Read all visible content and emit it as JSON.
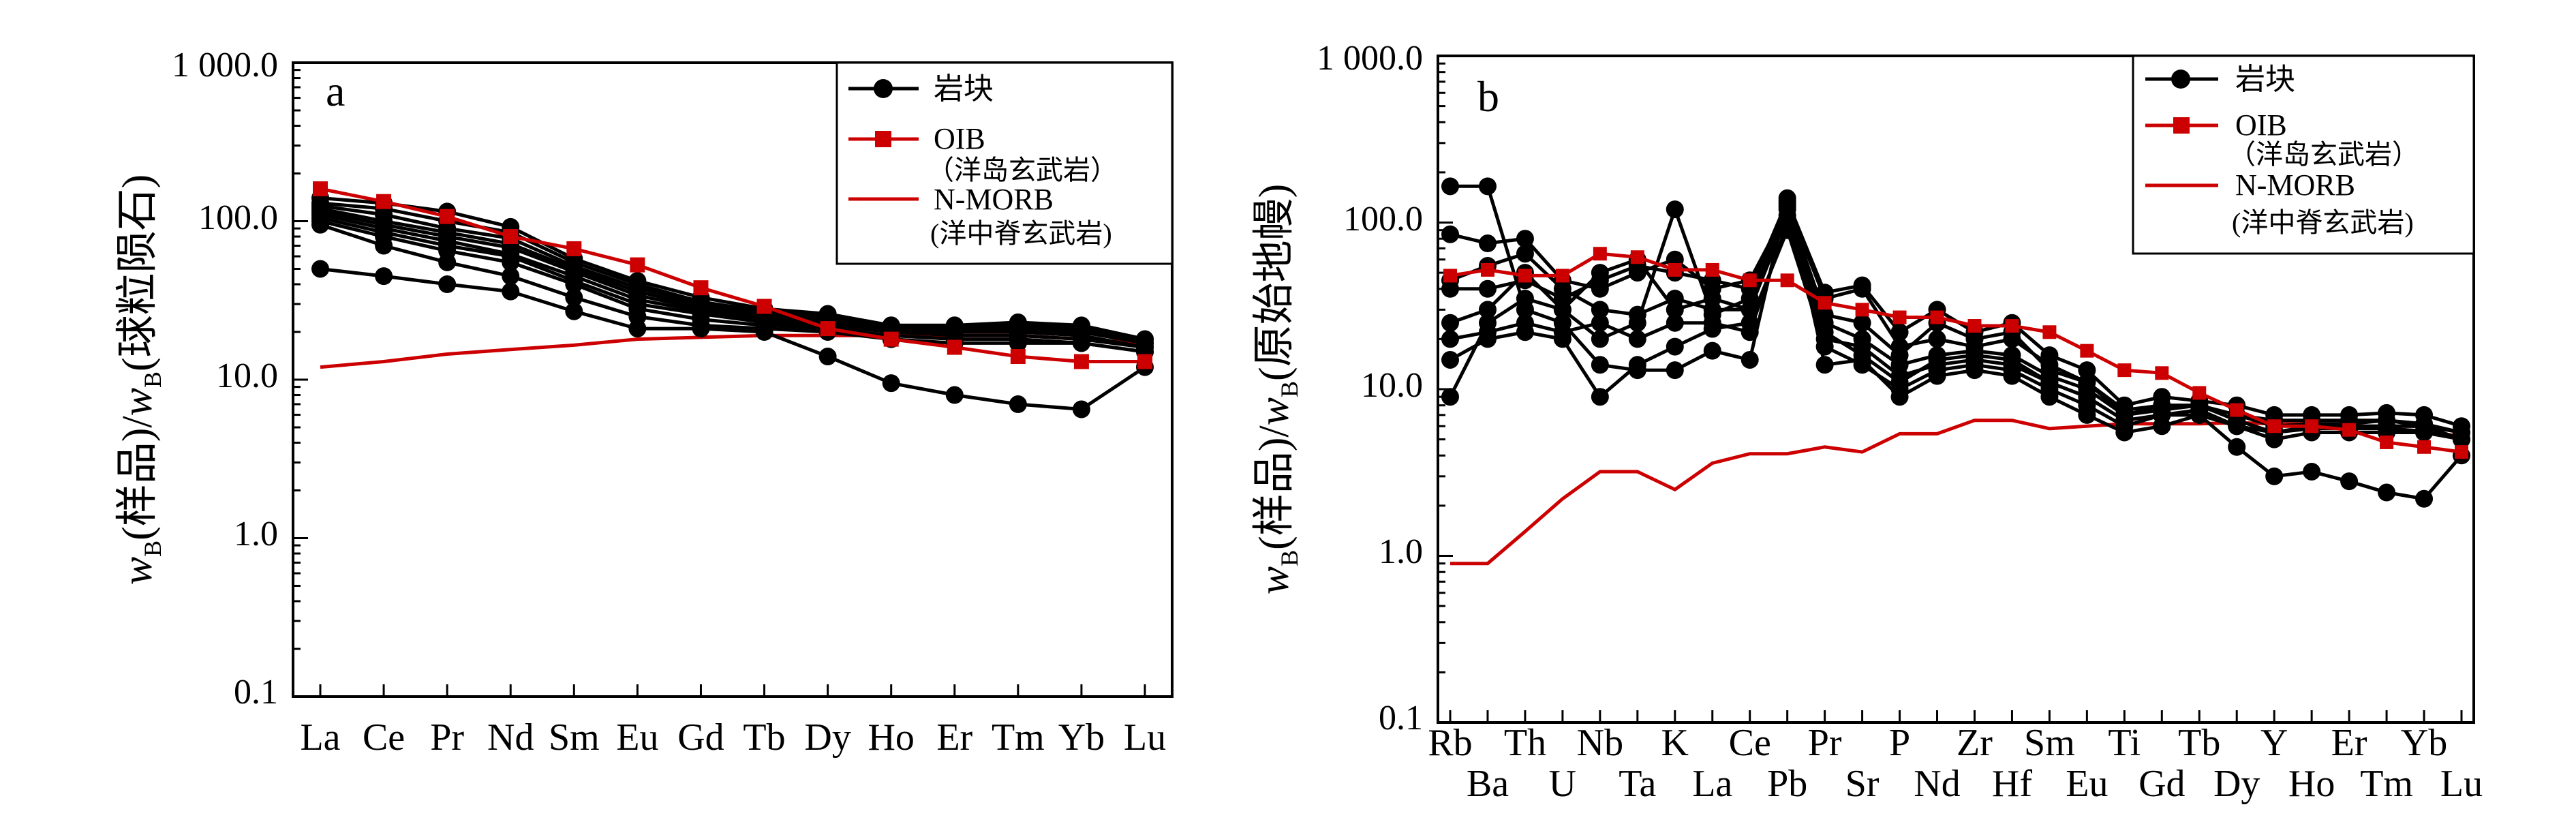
{
  "chart_data": [
    {
      "type": "line",
      "panel_label": "a",
      "ylabel": "w_B(样品)/w_B(球粒陨石)",
      "ylabel_parts": {
        "w1": "w",
        "sub1": "B",
        "p1": "(样品)/",
        "w2": "w",
        "sub2": "B",
        "p2": "(球粒陨石)"
      },
      "yscale": "log",
      "ylim": [
        0.1,
        1000
      ],
      "yticks": [
        "0.1",
        "1.0",
        "10.0",
        "100.0",
        "1 000.0"
      ],
      "categories": [
        "La",
        "Ce",
        "Pr",
        "Nd",
        "Sm",
        "Eu",
        "Gd",
        "Tb",
        "Dy",
        "Ho",
        "Er",
        "Tm",
        "Yb",
        "Lu"
      ],
      "legend": {
        "rock_label": "岩块",
        "oib_label": "OIB",
        "oib_sub": "（洋岛玄武岩）",
        "nmorb_label": "N-MORB",
        "nmorb_sub": "(洋中脊玄武岩)"
      },
      "colors": {
        "rock": "#000000",
        "oib": "#cc0000",
        "nmorb": "#cc0000"
      },
      "rock_series": [
        [
          50,
          45,
          40,
          36,
          27,
          21,
          21,
          20,
          14,
          9.5,
          8,
          7,
          6.5,
          12
        ],
        [
          95,
          70,
          55,
          45,
          33,
          25,
          22,
          21,
          20,
          18,
          17,
          17,
          17,
          15
        ],
        [
          100,
          80,
          65,
          55,
          40,
          28,
          24,
          22,
          21,
          19,
          18,
          18,
          17,
          15
        ],
        [
          105,
          85,
          70,
          60,
          42,
          30,
          26,
          23,
          22,
          20,
          19,
          19,
          18,
          16
        ],
        [
          110,
          90,
          75,
          62,
          45,
          32,
          27,
          24,
          22,
          20,
          20,
          20,
          19,
          16
        ],
        [
          115,
          95,
          80,
          68,
          48,
          34,
          28,
          25,
          23,
          21,
          20,
          20,
          20,
          17
        ],
        [
          120,
          100,
          85,
          72,
          50,
          36,
          29,
          25,
          24,
          21,
          21,
          21,
          20,
          17
        ],
        [
          125,
          110,
          90,
          78,
          52,
          38,
          30,
          26,
          24,
          22,
          21,
          21,
          21,
          17
        ],
        [
          130,
          120,
          100,
          85,
          55,
          40,
          31,
          27,
          25,
          22,
          22,
          22,
          21,
          18
        ],
        [
          140,
          130,
          115,
          92,
          58,
          42,
          33,
          28,
          26,
          22,
          22,
          23,
          22,
          18
        ]
      ],
      "oib": [
        160,
        133,
        107,
        80,
        67,
        53,
        38,
        29,
        21,
        18,
        16,
        14,
        13,
        13
      ],
      "nmorb": [
        12,
        13,
        14.5,
        15.5,
        16.5,
        18,
        18.5,
        19,
        19,
        19,
        19,
        19,
        18,
        17
      ]
    },
    {
      "type": "line",
      "panel_label": "b",
      "ylabel": "w_B(样品)/w_B(原始地幔)",
      "ylabel_parts": {
        "w1": "w",
        "sub1": "B",
        "p1": "(样品)/",
        "w2": "w",
        "sub2": "B",
        "p2": "(原始地幔)"
      },
      "yscale": "log",
      "ylim": [
        0.1,
        1000
      ],
      "yticks": [
        "0.1",
        "1.0",
        "10.0",
        "100.0",
        "1 000.0"
      ],
      "categories": [
        "Rb",
        "Ba",
        "Th",
        "U",
        "Nb",
        "Ta",
        "K",
        "La",
        "Ce",
        "Pb",
        "Pr",
        "Sr",
        "P",
        "Nd",
        "Zr",
        "Hf",
        "Sm",
        "Eu",
        "Ti",
        "Gd",
        "Tb",
        "Dy",
        "Y",
        "Ho",
        "Er",
        "Tm",
        "Yb",
        "Lu"
      ],
      "legend": {
        "rock_label": "岩块",
        "oib_label": "OIB",
        "oib_sub": "（洋岛玄武岩）",
        "nmorb_label": "N-MORB",
        "nmorb_sub": "(洋中脊玄武岩)"
      },
      "colors": {
        "rock": "#000000",
        "oib": "#cc0000",
        "nmorb": "#cc0000"
      },
      "rock_series": [
        [
          165,
          165,
          30,
          25,
          14,
          13,
          13,
          17,
          15,
          140,
          14,
          15,
          9,
          12,
          13,
          12,
          9,
          7,
          5.5,
          6,
          7,
          4.5,
          3,
          3.2,
          2.8,
          2.4,
          2.2,
          4
        ],
        [
          85,
          75,
          80,
          45,
          40,
          50,
          60,
          40,
          45,
          120,
          20,
          18,
          12,
          14,
          15,
          14,
          11,
          9,
          6.5,
          7,
          7.5,
          6,
          5,
          5.5,
          5.5,
          5.5,
          5.5,
          5
        ],
        [
          45,
          55,
          65,
          40,
          30,
          28,
          35,
          30,
          30,
          110,
          25,
          20,
          14,
          16,
          17,
          16,
          12,
          10,
          7,
          7.5,
          8,
          6.5,
          5.5,
          6,
          6,
          6,
          6,
          5
        ],
        [
          20,
          22,
          25,
          22,
          25,
          20,
          25,
          25,
          22,
          100,
          22,
          16,
          11,
          15,
          16,
          15,
          11,
          9,
          6.5,
          7,
          7.5,
          6,
          5.5,
          6,
          6,
          6,
          6,
          5
        ],
        [
          15,
          20,
          22,
          20,
          9,
          14,
          18,
          23,
          25,
          90,
          18,
          14,
          10,
          13,
          14,
          13,
          10,
          8,
          6,
          7,
          7,
          6,
          5.5,
          5.8,
          5.8,
          5.8,
          5.6,
          5
        ],
        [
          9,
          25,
          35,
          30,
          20,
          25,
          120,
          28,
          35,
          130,
          35,
          40,
          18,
          20,
          18,
          20,
          14,
          11,
          7.5,
          8,
          8,
          7,
          6.5,
          6.5,
          6.5,
          6.5,
          6,
          5.5
        ],
        [
          40,
          40,
          45,
          35,
          45,
          55,
          50,
          45,
          40,
          135,
          38,
          42,
          22,
          30,
          22,
          25,
          16,
          13,
          8,
          9,
          8.5,
          8,
          7,
          7,
          7,
          7.2,
          7,
          6
        ],
        [
          25,
          30,
          50,
          30,
          50,
          60,
          30,
          35,
          30,
          125,
          28,
          25,
          16,
          25,
          20,
          22,
          13,
          11,
          7,
          8,
          8,
          7,
          6,
          6.2,
          6.2,
          6.5,
          6.2,
          5.5
        ]
      ],
      "oib": [
        48,
        52,
        48,
        48,
        65,
        62,
        52,
        52,
        45,
        45,
        33,
        30,
        27,
        27,
        24,
        24,
        22,
        17,
        13,
        12.5,
        9.5,
        7.5,
        6,
        6,
        5.7,
        4.8,
        4.5,
        4.2
      ],
      "nmorb": [
        0.9,
        0.9,
        1.4,
        2.2,
        3.2,
        3.2,
        2.5,
        3.6,
        4.1,
        4.1,
        4.5,
        4.2,
        5.4,
        5.4,
        6.5,
        6.5,
        5.8,
        6,
        6.2,
        6.2,
        6.2,
        6.3,
        6.2,
        6.2,
        6,
        5.8,
        5.6,
        5.2
      ]
    }
  ]
}
